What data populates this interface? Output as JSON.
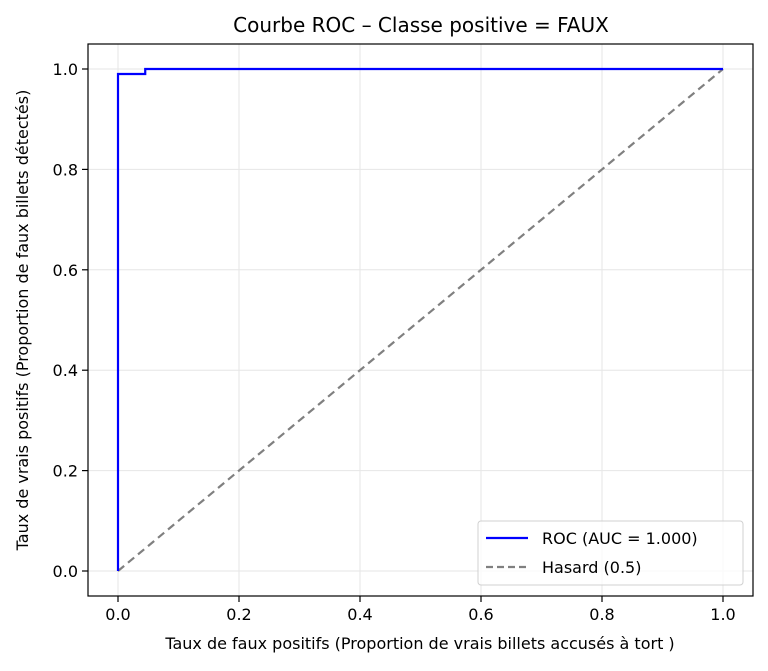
{
  "chart_data": {
    "type": "line",
    "title": "Courbe ROC – Classe positive = FAUX",
    "xlabel": "Taux de faux positifs (Proportion de vrais billets accusés à tort )",
    "ylabel": "Taux de vrais positifs (Proportion de faux billets détectés)",
    "xlim": [
      -0.05,
      1.05
    ],
    "ylim": [
      -0.05,
      1.05
    ],
    "grid": true,
    "legend_position": "lower right",
    "x_ticks": [
      "0.0",
      "0.2",
      "0.4",
      "0.6",
      "0.8",
      "1.0"
    ],
    "y_ticks": [
      "0.0",
      "0.2",
      "0.4",
      "0.6",
      "0.8",
      "1.0"
    ],
    "series": [
      {
        "name": "ROC (AUC = 1.000)",
        "color": "#0000ff",
        "style": "solid",
        "x": [
          0.0,
          0.0,
          0.045,
          0.045,
          1.0
        ],
        "y": [
          0.0,
          0.99,
          0.99,
          1.0,
          1.0
        ]
      },
      {
        "name": "Hasard (0.5)",
        "color": "#808080",
        "style": "dashed",
        "x": [
          0.0,
          1.0
        ],
        "y": [
          0.0,
          1.0
        ]
      }
    ]
  }
}
